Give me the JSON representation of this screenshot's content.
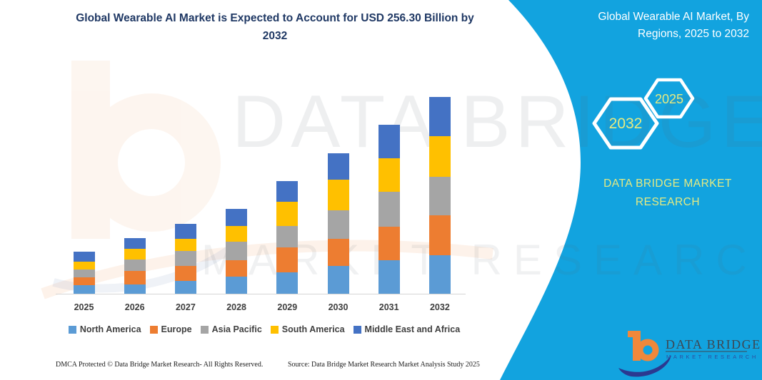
{
  "header": {
    "title_line1": "Global Wearable AI Market is Expected to Account for USD 256.30 Billion by",
    "title_line2": "2032",
    "title_color": "#1F3864"
  },
  "side_panel": {
    "panel_color": "#12A3DF",
    "title_line1": "Global Wearable AI Market, By",
    "title_line2": "Regions, 2025 to 2032",
    "hexagons": [
      {
        "label": "2032"
      },
      {
        "label": "2025"
      }
    ],
    "brand_line1": "DATA BRIDGE MARKET",
    "brand_line2": "RESEARCH",
    "accent_text_color": "#E6EA81"
  },
  "watermark": {
    "text_top": "DATA BRIDGE",
    "text_bottom": "MARKET RESEARCH"
  },
  "logo": {
    "name": "DATA BRIDGE",
    "subtitle": "MARKET RESEARCH",
    "name_color": "#3D4753",
    "subtitle_color": "#2E4E9E",
    "b_color": "#F0883A",
    "swoosh_color": "#2B3990"
  },
  "footer": {
    "dmca": "DMCA Protected © Data Bridge Market Research-  All Rights Reserved.",
    "source": "Source: Data Bridge Market Research  Market Analysis Study 2025"
  },
  "chart_data": {
    "type": "bar",
    "stacked": true,
    "title": "Global Wearable AI Market is Expected to Account for USD 256.30 Billion by 2032",
    "xlabel": "",
    "ylabel": "",
    "legend_position": "bottom",
    "grid": false,
    "ylim": [
      0,
      280
    ],
    "categories": [
      "2025",
      "2026",
      "2027",
      "2028",
      "2029",
      "2030",
      "2031",
      "2032"
    ],
    "series": [
      {
        "name": "North America",
        "color": "#5B9BD5",
        "values": [
          12.0,
          13.2,
          17.6,
          22.9,
          29.0,
          37.1,
          44.5,
          50.7
        ]
      },
      {
        "name": "Europe",
        "color": "#ED7D31",
        "values": [
          10.5,
          17.6,
          19.2,
          21.6,
          31.8,
          35.2,
          43.3,
          51.9
        ]
      },
      {
        "name": "Asia Pacific",
        "color": "#A5A5A5",
        "values": [
          10.2,
          14.8,
          19.2,
          23.8,
          27.8,
          37.1,
          45.1,
          50.0
        ]
      },
      {
        "name": "South America",
        "color": "#FFC000",
        "values": [
          10.2,
          13.9,
          16.4,
          20.4,
          31.5,
          39.6,
          43.8,
          53.1
        ]
      },
      {
        "name": "Middle East and Africa",
        "color": "#4472C4",
        "values": [
          13.0,
          13.3,
          19.5,
          22.2,
          27.1,
          34.6,
          43.3,
          50.6
        ]
      }
    ],
    "totals_estimated": [
      55.9,
      72.8,
      91.9,
      110.9,
      147.2,
      183.6,
      220.0,
      256.3
    ]
  }
}
